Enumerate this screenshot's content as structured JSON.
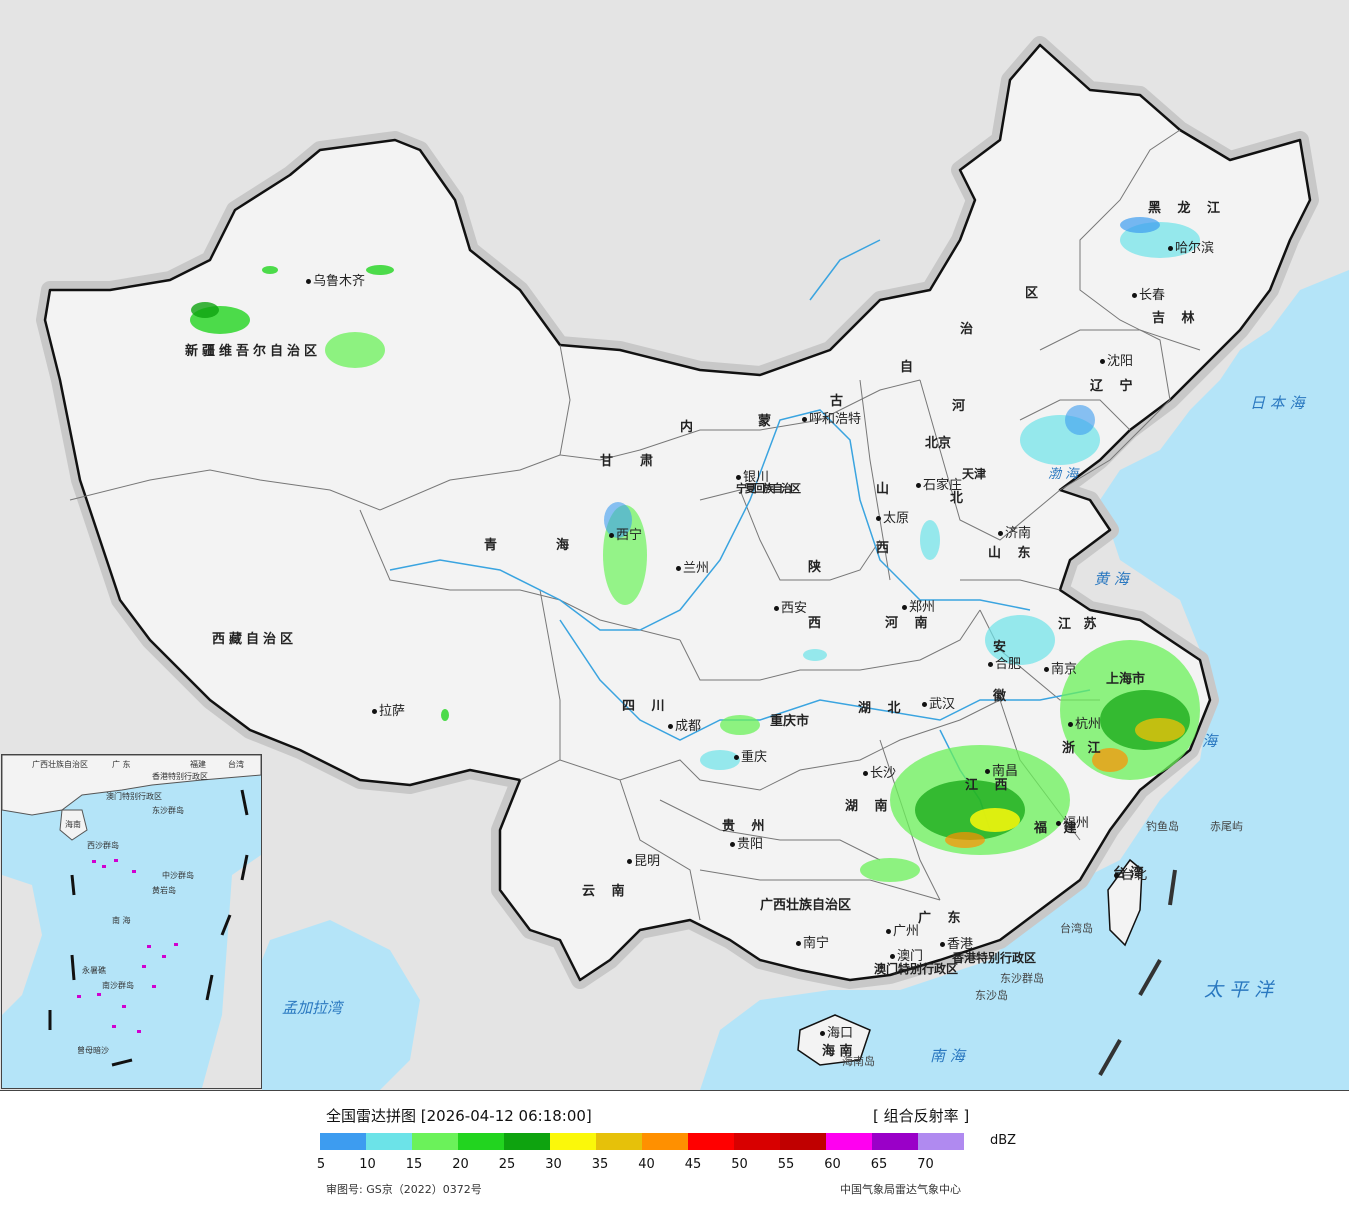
{
  "title": "全国雷达拼图 [2026-04-12 06:18:00]",
  "product": "[ 组合反射率 ]",
  "unit": "dBZ",
  "scale_ticks": [
    "5",
    "10",
    "15",
    "20",
    "25",
    "30",
    "35",
    "40",
    "45",
    "50",
    "55",
    "60",
    "65",
    "70"
  ],
  "scale_colors": [
    "#3d9cf0",
    "#6ce3e8",
    "#6bf25a",
    "#22d41f",
    "#0ea30f",
    "#fbf80a",
    "#e6c10a",
    "#ff9000",
    "#ff0000",
    "#d80000",
    "#c00000",
    "#ff00f0",
    "#9a00c8",
    "#b08af0"
  ],
  "approval": "审图号: GS京（2022）0372号",
  "source": "中国气象局雷达气象中心",
  "colors": {
    "sea": "#b4e4f8",
    "land": "#f3f3f3",
    "outside": "#e4e4e4"
  },
  "provinces": [
    {
      "id": "xinjiang",
      "label": "新疆维吾尔自治区"
    },
    {
      "id": "xizang",
      "label": "西藏自治区"
    },
    {
      "id": "qinghai-a",
      "label": "青"
    },
    {
      "id": "qinghai-b",
      "label": "海"
    },
    {
      "id": "gansu-a",
      "label": "甘"
    },
    {
      "id": "gansu-b",
      "label": "肃"
    },
    {
      "id": "neimenggu-a",
      "label": "内"
    },
    {
      "id": "neimenggu-b",
      "label": "蒙"
    },
    {
      "id": "neimenggu-c",
      "label": "古"
    },
    {
      "id": "neimenggu-d",
      "label": "自"
    },
    {
      "id": "neimenggu-e",
      "label": "治"
    },
    {
      "id": "neimenggu-f",
      "label": "区"
    },
    {
      "id": "heilongjiang",
      "label": "黑 龙 江"
    },
    {
      "id": "jilin",
      "label": "吉 林"
    },
    {
      "id": "liaoning",
      "label": "辽 宁"
    },
    {
      "id": "hebei-a",
      "label": "河"
    },
    {
      "id": "hebei-b",
      "label": "北"
    },
    {
      "id": "shanxi-a",
      "label": "山"
    },
    {
      "id": "shanxi-b",
      "label": "西"
    },
    {
      "id": "shaanxi-a",
      "label": "陕"
    },
    {
      "id": "shaanxi-b",
      "label": "西"
    },
    {
      "id": "ningxia",
      "label": "宁夏回族自治区"
    },
    {
      "id": "shandong",
      "label": "山 东"
    },
    {
      "id": "henan",
      "label": "河 南"
    },
    {
      "id": "jiangsu",
      "label": "江 苏"
    },
    {
      "id": "anhui-a",
      "label": "安"
    },
    {
      "id": "anhui-b",
      "label": "徽"
    },
    {
      "id": "shanghai",
      "label": "上海市"
    },
    {
      "id": "zhejiang",
      "label": "浙 江"
    },
    {
      "id": "hubei",
      "label": "湖 北"
    },
    {
      "id": "sichuan",
      "label": "四 川"
    },
    {
      "id": "chongqing",
      "label": "重庆市"
    },
    {
      "id": "hunan",
      "label": "湖 南"
    },
    {
      "id": "jiangxi",
      "label": "江 西"
    },
    {
      "id": "fujian",
      "label": "福 建"
    },
    {
      "id": "guizhou",
      "label": "贵 州"
    },
    {
      "id": "yunnan",
      "label": "云 南"
    },
    {
      "id": "guangxi",
      "label": "广西壮族自治区"
    },
    {
      "id": "guangdong",
      "label": "广 东"
    },
    {
      "id": "hainan",
      "label": "海 南"
    },
    {
      "id": "taiwan",
      "label": "台 湾"
    },
    {
      "id": "beijing",
      "label": "北京"
    },
    {
      "id": "tianjin",
      "label": "天津"
    },
    {
      "id": "hongkong",
      "label": "香港特别行政区"
    },
    {
      "id": "macau",
      "label": "澳门特别行政区"
    }
  ],
  "cities": [
    {
      "id": "urumqi",
      "label": "乌鲁木齐"
    },
    {
      "id": "lhasa",
      "label": "拉萨"
    },
    {
      "id": "xining",
      "label": "西宁"
    },
    {
      "id": "lanzhou",
      "label": "兰州"
    },
    {
      "id": "yinchuan",
      "label": "银川"
    },
    {
      "id": "hohhot",
      "label": "呼和浩特"
    },
    {
      "id": "harbin",
      "label": "哈尔滨"
    },
    {
      "id": "changchun",
      "label": "长春"
    },
    {
      "id": "shenyang",
      "label": "沈阳"
    },
    {
      "id": "shijiazhuang",
      "label": "石家庄"
    },
    {
      "id": "taiyuan",
      "label": "太原"
    },
    {
      "id": "jinan",
      "label": "济南"
    },
    {
      "id": "xian",
      "label": "西安"
    },
    {
      "id": "zhengzhou",
      "label": "郑州"
    },
    {
      "id": "hefei",
      "label": "合肥"
    },
    {
      "id": "nanjing",
      "label": "南京"
    },
    {
      "id": "hangzhou",
      "label": "杭州"
    },
    {
      "id": "wuhan",
      "label": "武汉"
    },
    {
      "id": "chengdu",
      "label": "成都"
    },
    {
      "id": "chongqing-c",
      "label": "重庆"
    },
    {
      "id": "changsha",
      "label": "长沙"
    },
    {
      "id": "nanchang",
      "label": "南昌"
    },
    {
      "id": "fuzhou",
      "label": "福州"
    },
    {
      "id": "guiyang",
      "label": "贵阳"
    },
    {
      "id": "kunming",
      "label": "昆明"
    },
    {
      "id": "nanning",
      "label": "南宁"
    },
    {
      "id": "guangzhou",
      "label": "广州"
    },
    {
      "id": "hongkong-c",
      "label": "香港"
    },
    {
      "id": "macau-c",
      "label": "澳门"
    },
    {
      "id": "haikou",
      "label": "海口"
    },
    {
      "id": "taipei",
      "label": "台北"
    }
  ],
  "seas": [
    {
      "id": "japan-sea",
      "label": "日 本 海"
    },
    {
      "id": "bohai",
      "label": "渤 海"
    },
    {
      "id": "yellow-sea",
      "label": "黄 海"
    },
    {
      "id": "east-sea",
      "label": "海"
    },
    {
      "id": "pacific",
      "label": "太 平 洋"
    },
    {
      "id": "south-sea",
      "label": "南 海"
    },
    {
      "id": "bengal",
      "label": "孟加拉湾"
    }
  ],
  "islands": [
    {
      "id": "diaoyu",
      "label": "钓鱼岛"
    },
    {
      "id": "chiwei",
      "label": "赤尾屿"
    },
    {
      "id": "taiwan-island",
      "label": "台湾岛"
    },
    {
      "id": "dongsha-islands",
      "label": "东沙群岛"
    },
    {
      "id": "dongsha-island",
      "label": "东沙岛"
    },
    {
      "id": "hainan-island",
      "label": "海南岛"
    }
  ],
  "inset": {
    "labels": [
      {
        "id": "in-guangxi",
        "label": "广西壮族自治区"
      },
      {
        "id": "in-guangdong",
        "label": "广 东"
      },
      {
        "id": "in-fujian",
        "label": "福建"
      },
      {
        "id": "in-taiwan",
        "label": "台湾"
      },
      {
        "id": "in-hk",
        "label": "香港特别行政区"
      },
      {
        "id": "in-macau",
        "label": "澳门特别行政区"
      },
      {
        "id": "in-hainan",
        "label": "海南"
      },
      {
        "id": "in-xisha",
        "label": "西沙群岛"
      },
      {
        "id": "in-zhongsha",
        "label": "中沙群岛"
      },
      {
        "id": "in-nansha",
        "label": "南沙群岛"
      },
      {
        "id": "in-southsea",
        "label": "南 海"
      },
      {
        "id": "in-dongsha",
        "label": "东沙群岛"
      },
      {
        "id": "in-huangyan",
        "label": "黄岩岛"
      },
      {
        "id": "in-zengmu",
        "label": "曾母暗沙"
      },
      {
        "id": "in-yongshu",
        "label": "永暑礁"
      }
    ]
  }
}
